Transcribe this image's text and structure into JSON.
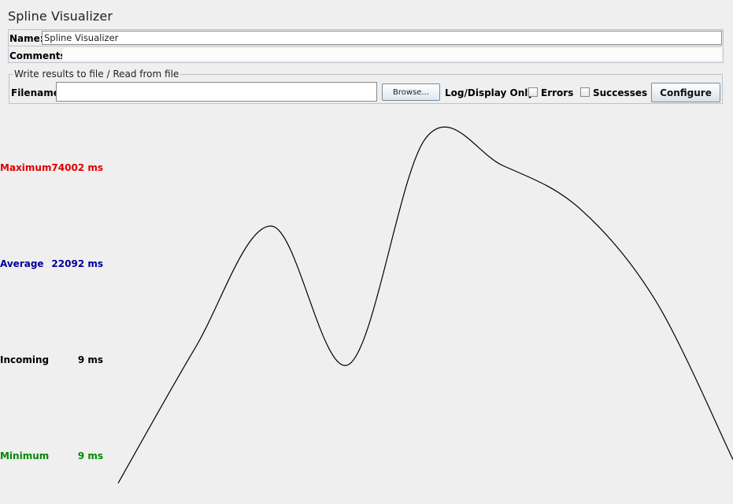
{
  "window": {
    "title": "Spline Visualizer"
  },
  "name_field": {
    "label": "Name:",
    "value": "Spline Visualizer"
  },
  "comments_field": {
    "label": "Comments:",
    "value": ""
  },
  "file_panel": {
    "legend": "Write results to file / Read from file",
    "filename_label": "Filename",
    "filename_value": "",
    "browse_label": "Browse...",
    "log_display_label": "Log/Display Only:",
    "errors_label": "Errors",
    "errors_checked": false,
    "successes_label": "Successes",
    "successes_checked": false,
    "configure_label": "Configure"
  },
  "stats": {
    "maximum": {
      "label": "Maximum",
      "value": "74002 ms",
      "color": "#e00000"
    },
    "average": {
      "label": "Average",
      "value": "22092 ms",
      "color": "#000099"
    },
    "incoming": {
      "label": "Incoming",
      "value": "9 ms",
      "color": "#000000"
    },
    "minimum": {
      "label": "Minimum",
      "value": "9 ms",
      "color": "#008800"
    }
  },
  "chart_data": {
    "type": "line",
    "title": "",
    "xlabel": "",
    "ylabel": "",
    "grid": false,
    "y_unit": "ms",
    "x": [
      0,
      1,
      2,
      3,
      4,
      5,
      6,
      7,
      8
    ],
    "y": [
      10690,
      34680,
      56400,
      31800,
      72000,
      67200,
      59600,
      43000,
      14900
    ],
    "ylim": [
      7000,
      75600
    ],
    "line_color": "#000000"
  }
}
